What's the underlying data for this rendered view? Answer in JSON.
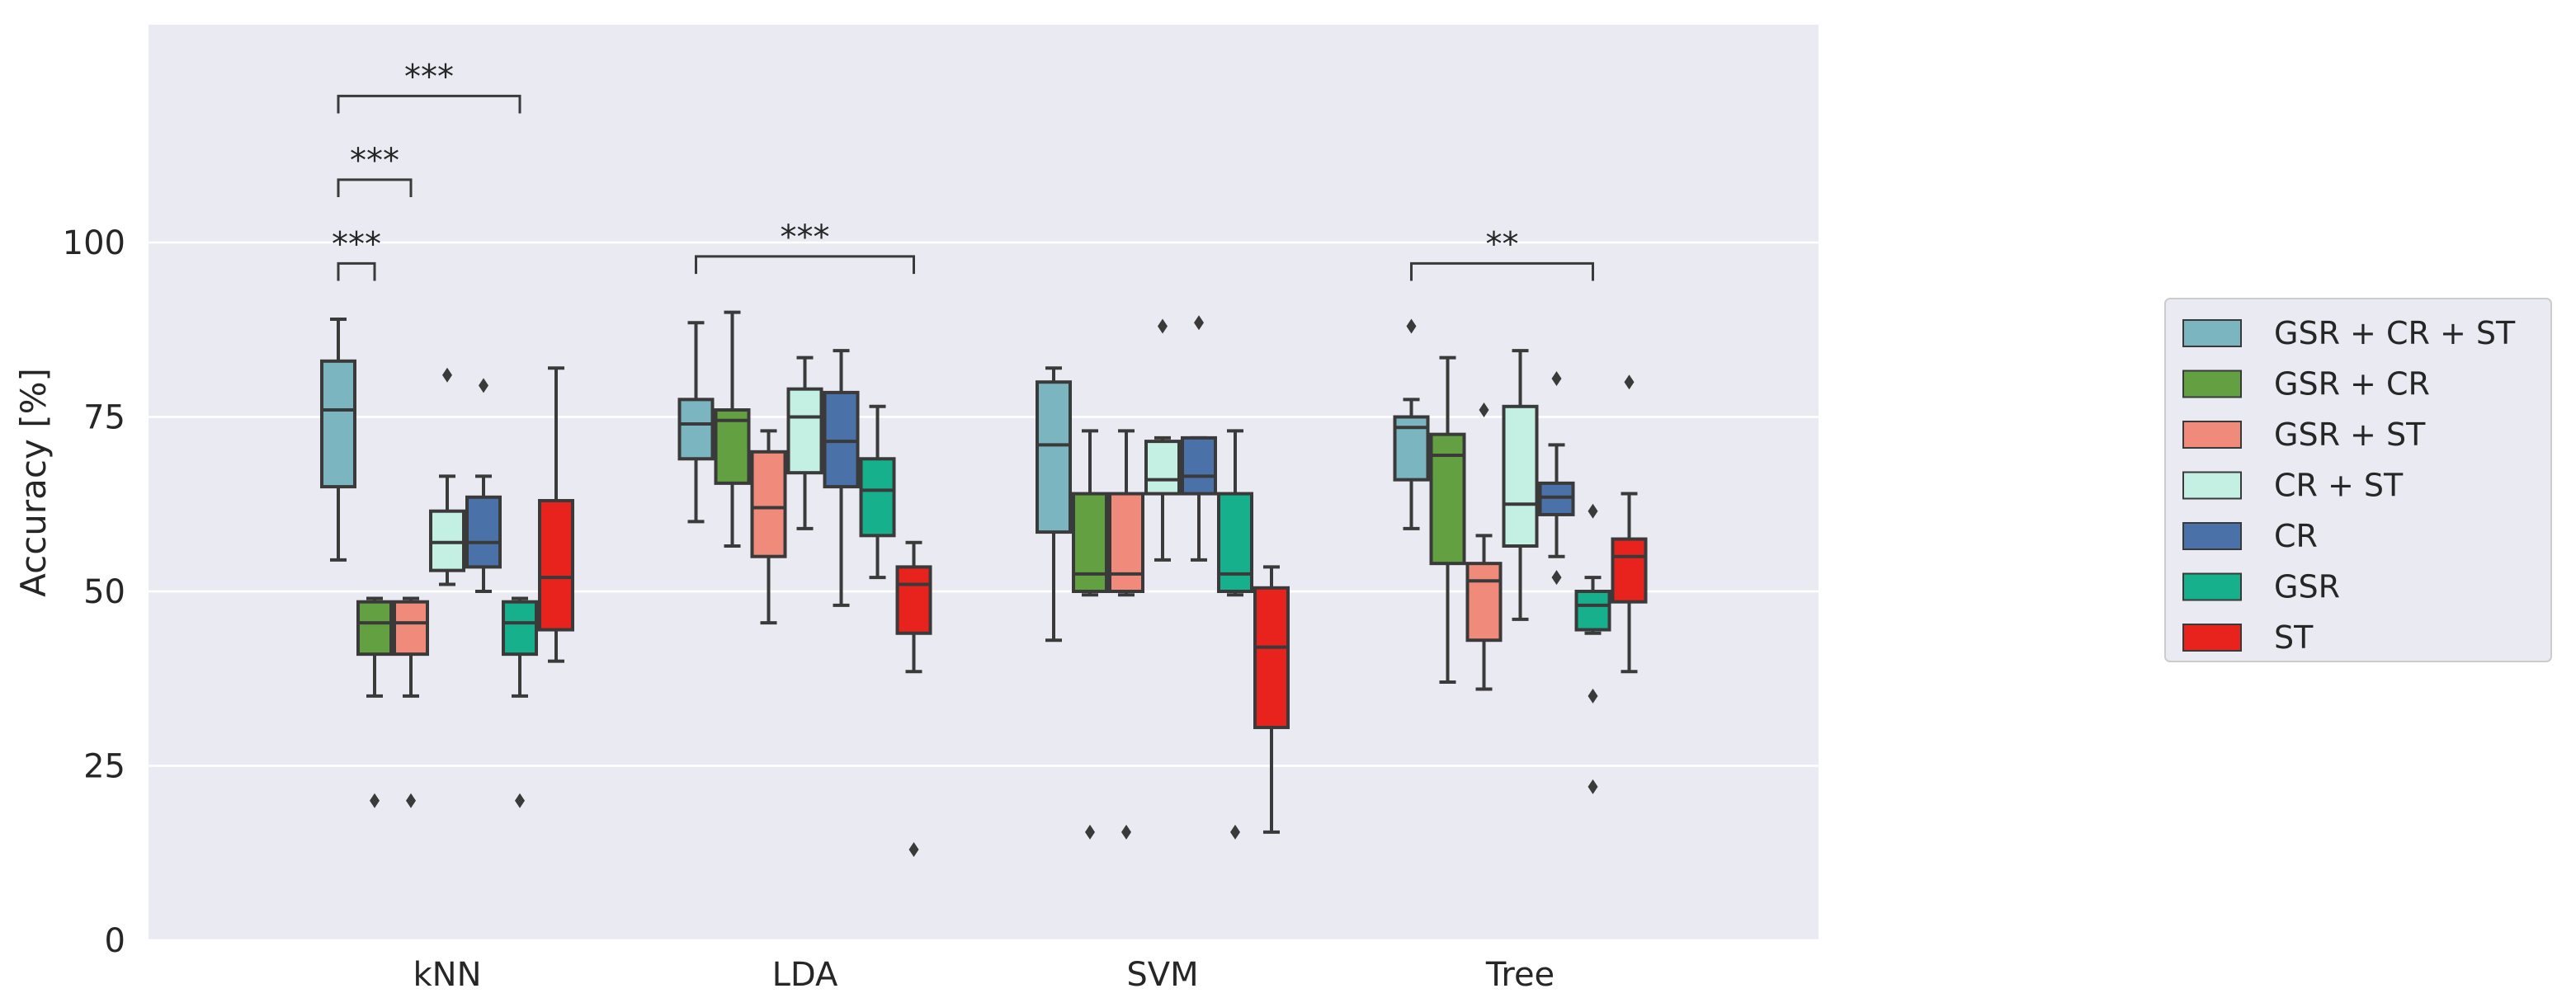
{
  "chart_data": {
    "type": "box",
    "ylabel": "Accuracy [%]",
    "xlabel": "",
    "ylim": [
      0,
      130
    ],
    "yticks": [
      0,
      25,
      50,
      75,
      100
    ],
    "grid": true,
    "legend_position": "right",
    "categories": [
      "kNN",
      "LDA",
      "SVM",
      "Tree"
    ],
    "series": [
      {
        "name": "GSR + CR + ST",
        "color": "#7bb5bf",
        "boxes": [
          {
            "category": "kNN",
            "whisker_low": 54.5,
            "q1": 65,
            "median": 76,
            "q3": 83,
            "whisker_high": 89,
            "outliers": []
          },
          {
            "category": "LDA",
            "whisker_low": 60,
            "q1": 69,
            "median": 74,
            "q3": 77.5,
            "whisker_high": 88.5,
            "outliers": []
          },
          {
            "category": "SVM",
            "whisker_low": 43,
            "q1": 58.5,
            "median": 71,
            "q3": 80,
            "whisker_high": 82,
            "outliers": []
          },
          {
            "category": "Tree",
            "whisker_low": 59,
            "q1": 66,
            "median": 73.5,
            "q3": 75,
            "whisker_high": 77.5,
            "outliers": [
              88
            ]
          }
        ]
      },
      {
        "name": "GSR + CR",
        "color": "#63a042",
        "boxes": [
          {
            "category": "kNN",
            "whisker_low": 35,
            "q1": 41,
            "median": 45.5,
            "q3": 48.5,
            "whisker_high": 49,
            "outliers": [
              20
            ]
          },
          {
            "category": "LDA",
            "whisker_low": 56.5,
            "q1": 65.5,
            "median": 74.5,
            "q3": 76,
            "whisker_high": 90,
            "outliers": []
          },
          {
            "category": "SVM",
            "whisker_low": 49.5,
            "q1": 50,
            "median": 52.5,
            "q3": 64,
            "whisker_high": 73,
            "outliers": [
              15.5
            ]
          },
          {
            "category": "Tree",
            "whisker_low": 37,
            "q1": 54,
            "median": 69.5,
            "q3": 72.5,
            "whisker_high": 83.5,
            "outliers": []
          }
        ]
      },
      {
        "name": "GSR + ST",
        "color": "#f08a7b",
        "boxes": [
          {
            "category": "kNN",
            "whisker_low": 35,
            "q1": 41,
            "median": 45.5,
            "q3": 48.5,
            "whisker_high": 49,
            "outliers": [
              20
            ]
          },
          {
            "category": "LDA",
            "whisker_low": 45.5,
            "q1": 55,
            "median": 62,
            "q3": 70,
            "whisker_high": 73,
            "outliers": []
          },
          {
            "category": "SVM",
            "whisker_low": 49.5,
            "q1": 50,
            "median": 52.5,
            "q3": 64,
            "whisker_high": 73,
            "outliers": [
              15.5
            ]
          },
          {
            "category": "Tree",
            "whisker_low": 36,
            "q1": 43,
            "median": 51.5,
            "q3": 54,
            "whisker_high": 58,
            "outliers": [
              76
            ]
          }
        ]
      },
      {
        "name": "CR + ST",
        "color": "#c4efe3",
        "boxes": [
          {
            "category": "kNN",
            "whisker_low": 51,
            "q1": 53,
            "median": 57,
            "q3": 61.5,
            "whisker_high": 66.5,
            "outliers": [
              81
            ]
          },
          {
            "category": "LDA",
            "whisker_low": 59,
            "q1": 67,
            "median": 75,
            "q3": 79,
            "whisker_high": 83.5,
            "outliers": []
          },
          {
            "category": "SVM",
            "whisker_low": 54.5,
            "q1": 64,
            "median": 66,
            "q3": 71.5,
            "whisker_high": 72,
            "outliers": [
              88
            ]
          },
          {
            "category": "Tree",
            "whisker_low": 46,
            "q1": 56.5,
            "median": 62.5,
            "q3": 76.5,
            "whisker_high": 84.5,
            "outliers": []
          }
        ]
      },
      {
        "name": "CR",
        "color": "#4b72a8",
        "boxes": [
          {
            "category": "kNN",
            "whisker_low": 50,
            "q1": 53.5,
            "median": 57,
            "q3": 63.5,
            "whisker_high": 66.5,
            "outliers": [
              79.5
            ]
          },
          {
            "category": "LDA",
            "whisker_low": 48,
            "q1": 65,
            "median": 71.5,
            "q3": 78.5,
            "whisker_high": 84.5,
            "outliers": []
          },
          {
            "category": "SVM",
            "whisker_low": 54.5,
            "q1": 64,
            "median": 66.5,
            "q3": 72,
            "whisker_high": 72,
            "outliers": [
              88.5
            ]
          },
          {
            "category": "Tree",
            "whisker_low": 55,
            "q1": 61,
            "median": 63.5,
            "q3": 65.5,
            "whisker_high": 71,
            "outliers": [
              52,
              80.5
            ]
          }
        ]
      },
      {
        "name": "GSR",
        "color": "#16b08c",
        "boxes": [
          {
            "category": "kNN",
            "whisker_low": 35,
            "q1": 41,
            "median": 45.5,
            "q3": 48.5,
            "whisker_high": 49,
            "outliers": [
              20
            ]
          },
          {
            "category": "LDA",
            "whisker_low": 52,
            "q1": 58,
            "median": 64.5,
            "q3": 69,
            "whisker_high": 76.5,
            "outliers": []
          },
          {
            "category": "SVM",
            "whisker_low": 49.5,
            "q1": 50,
            "median": 52.5,
            "q3": 64,
            "whisker_high": 73,
            "outliers": [
              15.5
            ]
          },
          {
            "category": "Tree",
            "whisker_low": 44,
            "q1": 44.5,
            "median": 48,
            "q3": 50,
            "whisker_high": 52,
            "outliers": [
              22,
              35,
              61.5
            ]
          }
        ]
      },
      {
        "name": "ST",
        "color": "#e8231d",
        "boxes": [
          {
            "category": "kNN",
            "whisker_low": 40,
            "q1": 44.5,
            "median": 52,
            "q3": 63,
            "whisker_high": 82,
            "outliers": []
          },
          {
            "category": "LDA",
            "whisker_low": 38.5,
            "q1": 44,
            "median": 51,
            "q3": 53.5,
            "whisker_high": 57,
            "outliers": [
              13
            ]
          },
          {
            "category": "SVM",
            "whisker_low": 15.5,
            "q1": 30.5,
            "median": 42,
            "q3": 50.5,
            "whisker_high": 53.5,
            "outliers": []
          },
          {
            "category": "Tree",
            "whisker_low": 38.5,
            "q1": 48.5,
            "median": 55,
            "q3": 57.5,
            "whisker_high": 64,
            "outliers": [
              80
            ]
          }
        ]
      }
    ],
    "annotations": [
      {
        "category": "kNN",
        "from_series": 0,
        "to_series": 1,
        "y": 97,
        "drop": 2.5,
        "label": "***"
      },
      {
        "category": "kNN",
        "from_series": 0,
        "to_series": 2,
        "y": 109,
        "drop": 2.5,
        "label": "***"
      },
      {
        "category": "kNN",
        "from_series": 0,
        "to_series": 5,
        "y": 121,
        "drop": 2.5,
        "label": "***"
      },
      {
        "category": "LDA",
        "from_series": 0,
        "to_series": 6,
        "y": 98,
        "drop": 2.5,
        "label": "***"
      },
      {
        "category": "Tree",
        "from_series": 0,
        "to_series": 5,
        "y": 97,
        "drop": 2.5,
        "label": "**"
      }
    ]
  }
}
